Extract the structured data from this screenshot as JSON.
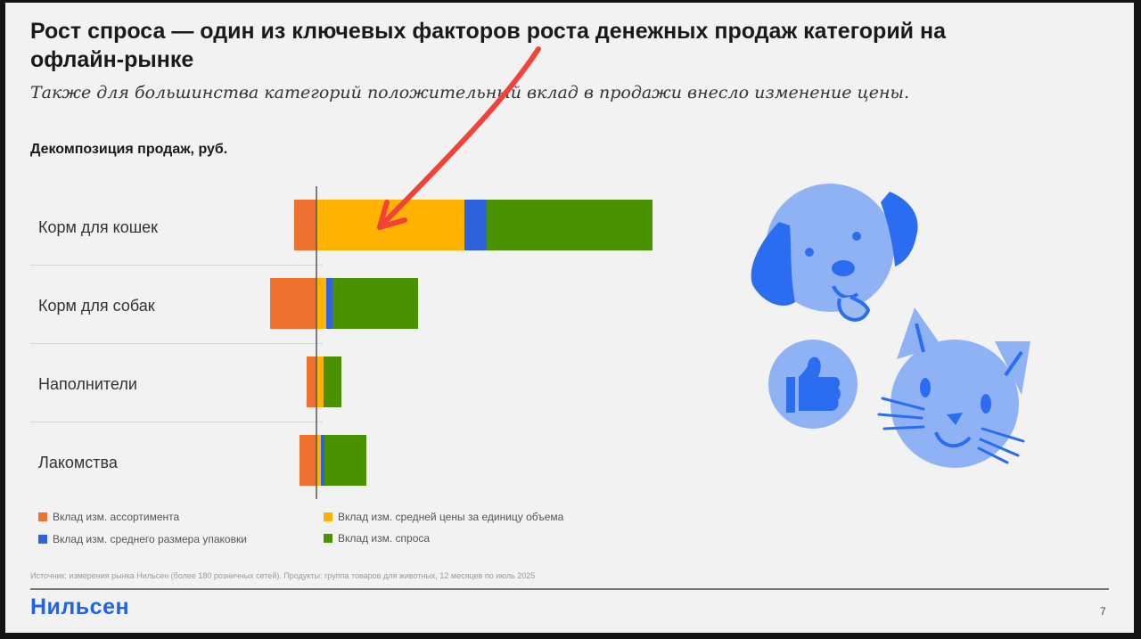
{
  "title": "Рост спроса — один из ключевых факторов роста денежных продаж категорий на офлайн-рынке",
  "subtitle": "Также для большинства категорий положительный вклад в продажи внесло изменение цены.",
  "chart_title": "Декомпозиция продаж, руб.",
  "chart_data": {
    "type": "bar",
    "orientation": "horizontal",
    "stacked": true,
    "categories": [
      "Корм для кошек",
      "Корм для собак",
      "Наполнители",
      "Лакомства"
    ],
    "series": [
      {
        "name": "Вклад изм. ассортимента",
        "color": "#ef7130",
        "values": [
          -25,
          -52,
          -11,
          -19
        ]
      },
      {
        "name": "Вклад изм. средней цены за единицу объема",
        "color": "#ffb300",
        "values": [
          166,
          11,
          8,
          5
        ]
      },
      {
        "name": "Вклад изм. среднего размера упаковки",
        "color": "#2f63db",
        "values": [
          25,
          7,
          1,
          4
        ]
      },
      {
        "name": "Вклад изм. спроса",
        "color": "#4b9200",
        "values": [
          186,
          96,
          19,
          47
        ]
      }
    ],
    "grid": false,
    "legend": "bottom"
  },
  "legend": [
    {
      "label": "Вклад изм. ассортимента",
      "color": "#ef7130"
    },
    {
      "label": "Вклад изм. средней цены за единицу объема",
      "color": "#ffb300"
    },
    {
      "label": "Вклад изм. среднего размера упаковки",
      "color": "#2f63db"
    },
    {
      "label": "Вклад изм. спроса",
      "color": "#4b9200"
    }
  ],
  "source": "Источник: измерения рынка Нильсен (более 180 розничных сетей). Продукты: группа товаров для животных, 12 месяцев по июль 2025",
  "logo": "Нильсен",
  "page_number": "7",
  "illustration_icons": [
    "dog-icon",
    "cat-icon",
    "thumbs-up-icon"
  ],
  "annotation": "red-arrow-icon"
}
